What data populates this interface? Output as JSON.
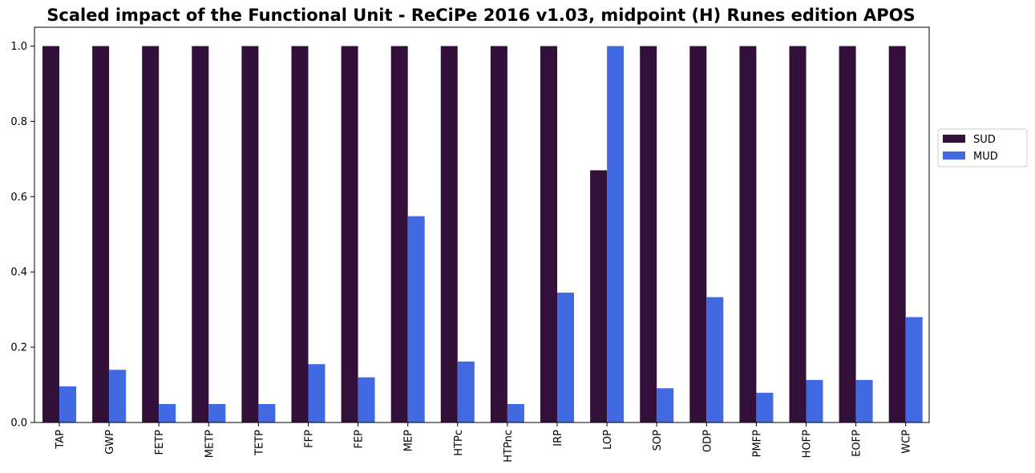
{
  "chart_data": {
    "type": "bar",
    "title": "Scaled impact of the Functional Unit - ReCiPe 2016 v1.03, midpoint (H) Runes edition APOS",
    "xlabel": "",
    "ylabel": "",
    "ylim": [
      0,
      1.05
    ],
    "yticks": [
      "0.0",
      "0.2",
      "0.4",
      "0.6",
      "0.8",
      "1.0"
    ],
    "grid": false,
    "legend_position": "center-right outside",
    "categories": [
      "TAP",
      "GWP",
      "FETP",
      "METP",
      "TETP",
      "FFP",
      "FEP",
      "MEP",
      "HTPc",
      "HTPnc",
      "IRP",
      "LOP",
      "SOP",
      "ODP",
      "PMFP",
      "HOFP",
      "EOFP",
      "WCP"
    ],
    "series": [
      {
        "name": "SUD",
        "color": "#32103a",
        "values": [
          1.0,
          1.0,
          1.0,
          1.0,
          1.0,
          1.0,
          1.0,
          1.0,
          1.0,
          1.0,
          1.0,
          0.67,
          1.0,
          1.0,
          1.0,
          1.0,
          1.0,
          1.0
        ]
      },
      {
        "name": "MUD",
        "color": "#4169e1",
        "values": [
          0.096,
          0.14,
          0.049,
          0.049,
          0.049,
          0.155,
          0.12,
          0.548,
          0.162,
          0.049,
          0.345,
          1.0,
          0.091,
          0.333,
          0.079,
          0.113,
          0.113,
          0.28
        ]
      }
    ]
  }
}
